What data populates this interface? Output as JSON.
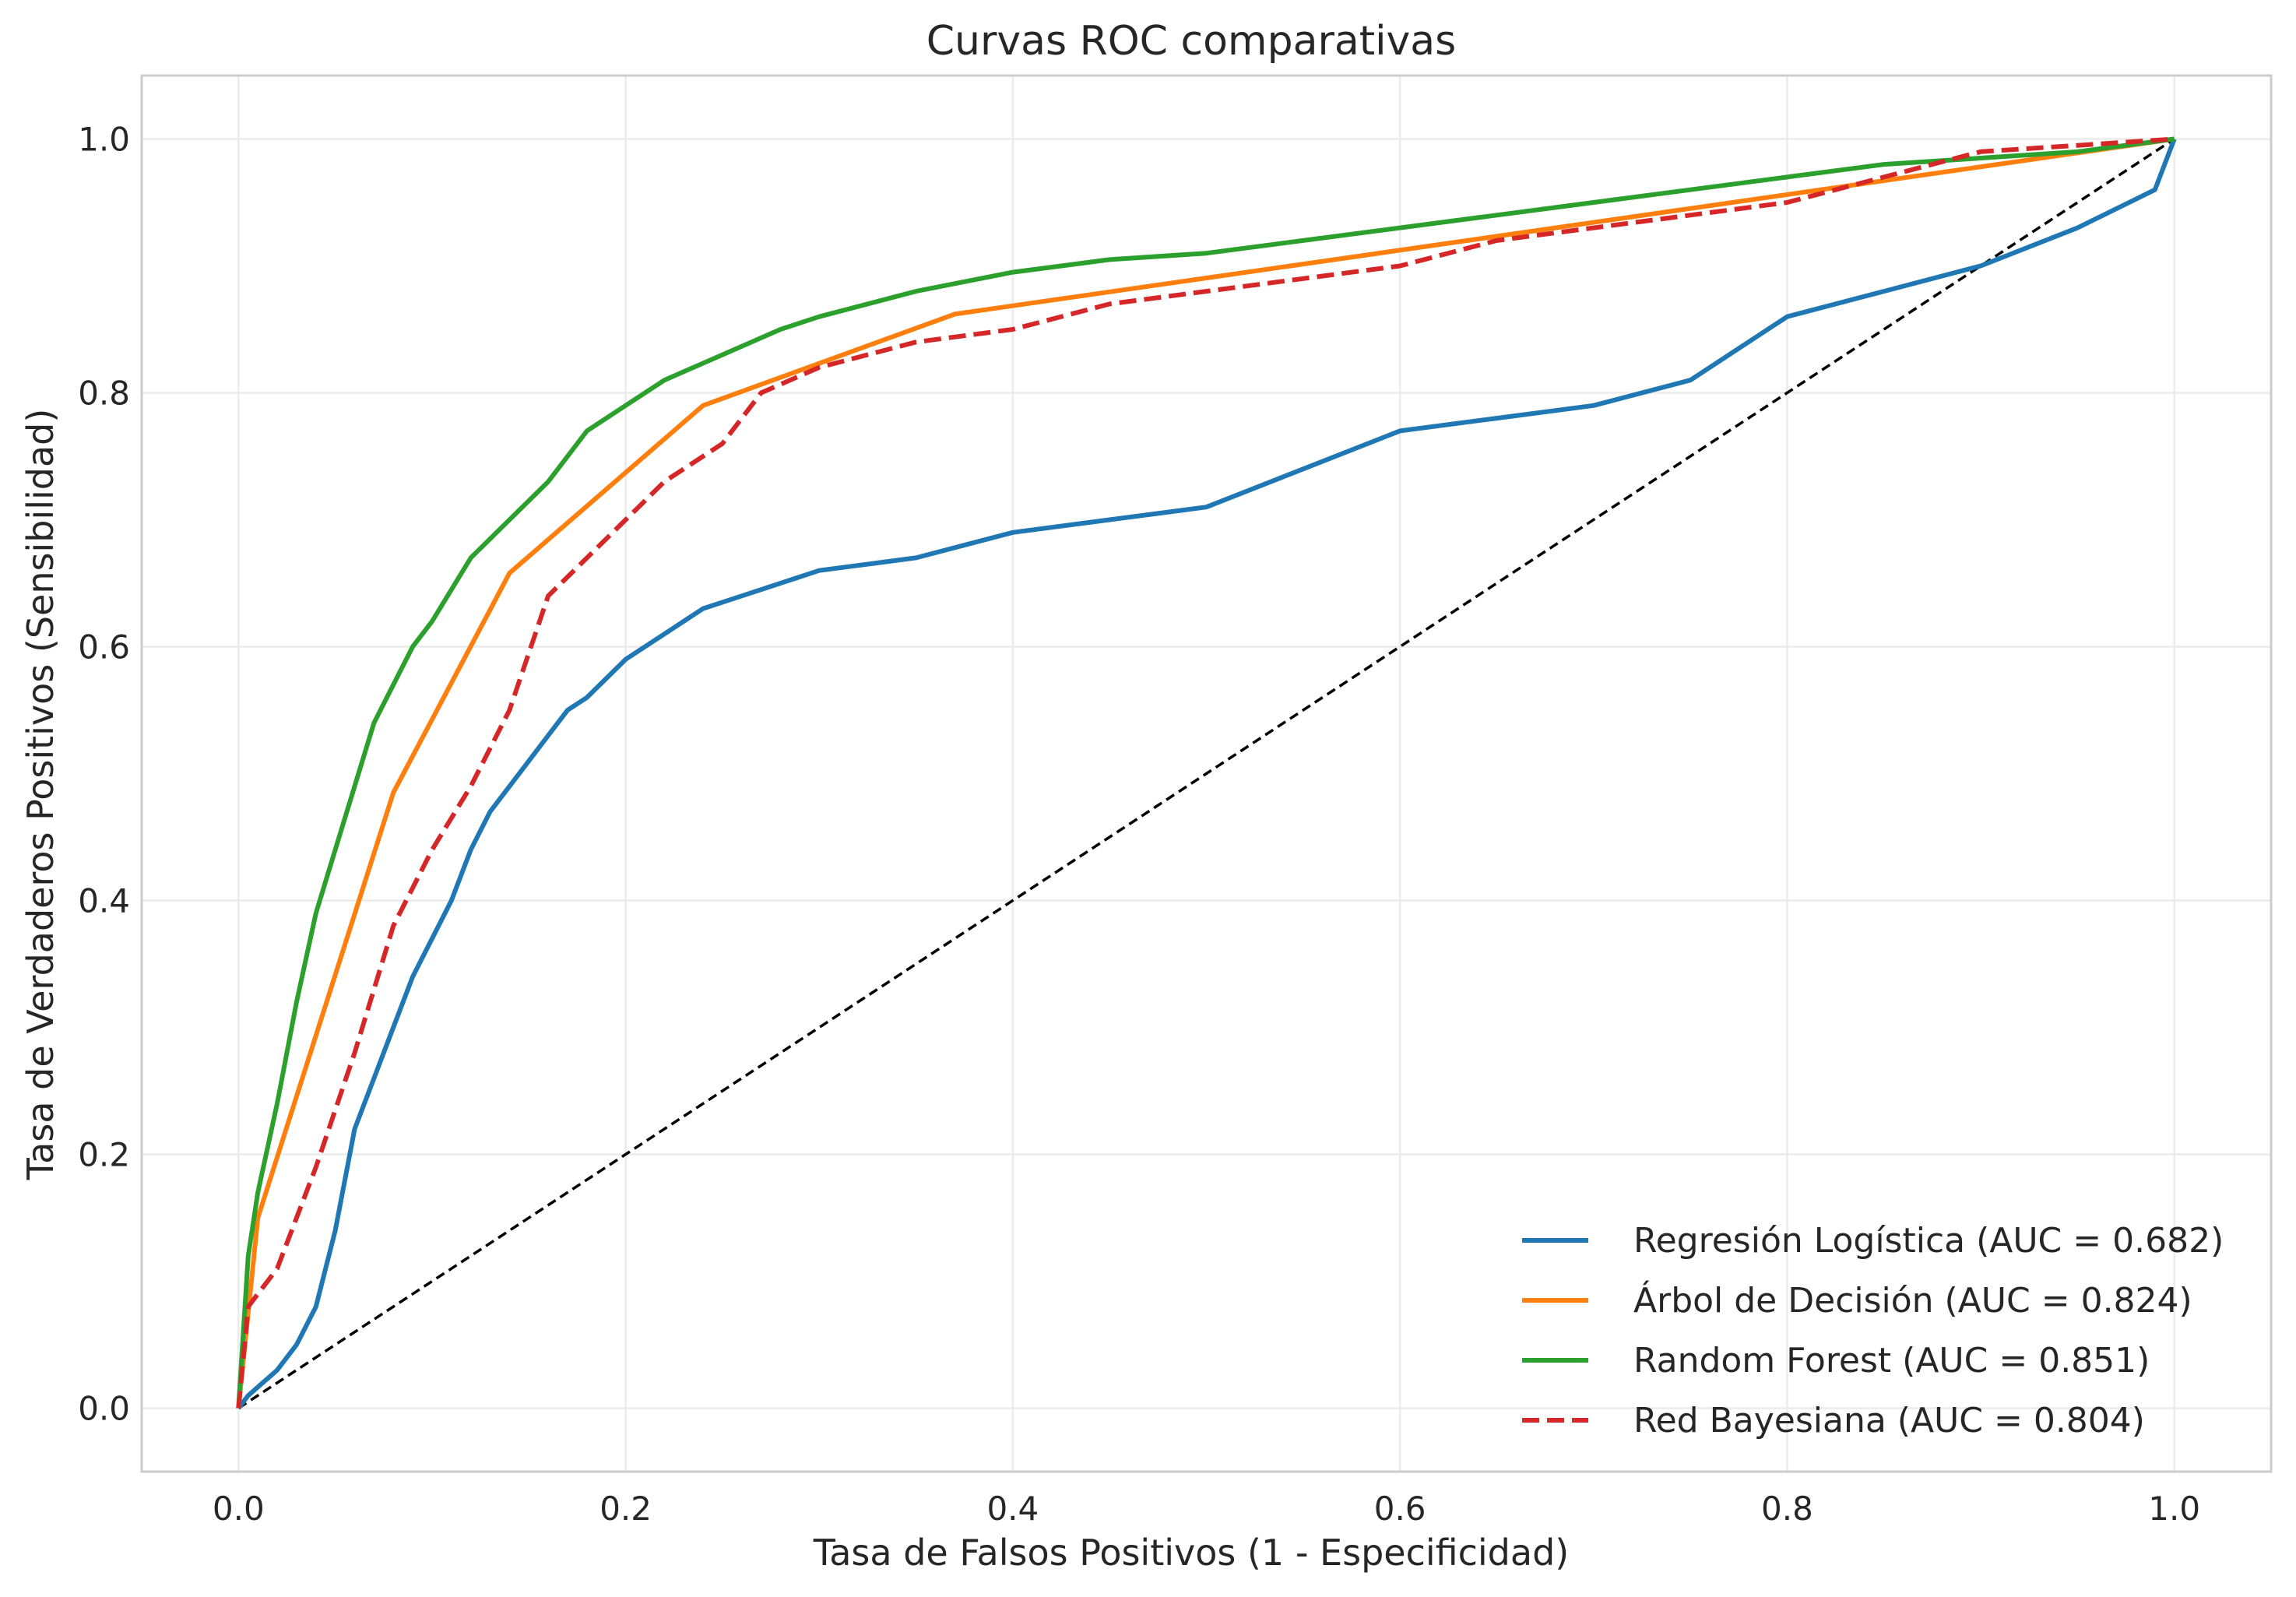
{
  "chart_data": {
    "type": "line",
    "title": "Curvas ROC comparativas",
    "xlabel": "Tasa de Falsos Positivos (1 - Especificidad)",
    "ylabel": "Tasa de Verdaderos Positivos (Sensibilidad)",
    "xlim": [
      -0.05,
      1.05
    ],
    "ylim": [
      -0.05,
      1.05
    ],
    "xticks": [
      0.0,
      0.2,
      0.4,
      0.6,
      0.8,
      1.0
    ],
    "yticks": [
      0.0,
      0.2,
      0.4,
      0.6,
      0.8,
      1.0
    ],
    "xtick_labels": [
      "0.0",
      "0.2",
      "0.4",
      "0.6",
      "0.8",
      "1.0"
    ],
    "ytick_labels": [
      "0.0",
      "0.2",
      "0.4",
      "0.6",
      "0.8",
      "1.0"
    ],
    "grid": true,
    "legend_position": "lower-right",
    "series": [
      {
        "name": "Regresión Logística (AUC = 0.682)",
        "color": "#1f77b4",
        "dash": "solid",
        "x": [
          0,
          0.005,
          0.02,
          0.03,
          0.04,
          0.05,
          0.06,
          0.07,
          0.08,
          0.09,
          0.1,
          0.11,
          0.12,
          0.13,
          0.14,
          0.15,
          0.16,
          0.17,
          0.18,
          0.2,
          0.22,
          0.24,
          0.26,
          0.28,
          0.3,
          0.35,
          0.4,
          0.45,
          0.5,
          0.55,
          0.6,
          0.65,
          0.7,
          0.75,
          0.8,
          0.85,
          0.9,
          0.95,
          0.99,
          1.0
        ],
        "y": [
          0,
          0.01,
          0.03,
          0.05,
          0.08,
          0.14,
          0.22,
          0.26,
          0.3,
          0.34,
          0.37,
          0.4,
          0.44,
          0.47,
          0.49,
          0.51,
          0.53,
          0.55,
          0.56,
          0.59,
          0.61,
          0.63,
          0.64,
          0.65,
          0.66,
          0.67,
          0.69,
          0.7,
          0.71,
          0.74,
          0.77,
          0.78,
          0.79,
          0.81,
          0.86,
          0.88,
          0.9,
          0.93,
          0.96,
          1.0
        ]
      },
      {
        "name": "Árbol de Decisión (AUC = 0.824)",
        "color": "#ff7f0e",
        "dash": "solid",
        "x": [
          0,
          0.01,
          0.08,
          0.14,
          0.24,
          0.37,
          1.0
        ],
        "y": [
          0,
          0.15,
          0.485,
          0.658,
          0.79,
          0.862,
          1.0
        ]
      },
      {
        "name": "Random Forest (AUC = 0.851)",
        "color": "#2ca02c",
        "dash": "solid",
        "x": [
          0,
          0.005,
          0.01,
          0.02,
          0.03,
          0.04,
          0.05,
          0.06,
          0.07,
          0.08,
          0.09,
          0.1,
          0.12,
          0.14,
          0.16,
          0.18,
          0.2,
          0.22,
          0.25,
          0.28,
          0.3,
          0.35,
          0.4,
          0.45,
          0.5,
          0.55,
          0.6,
          0.65,
          0.7,
          0.75,
          0.8,
          0.85,
          0.9,
          0.95,
          1.0
        ],
        "y": [
          0,
          0.12,
          0.17,
          0.24,
          0.32,
          0.39,
          0.44,
          0.49,
          0.54,
          0.57,
          0.6,
          0.62,
          0.67,
          0.7,
          0.73,
          0.77,
          0.79,
          0.81,
          0.83,
          0.85,
          0.86,
          0.88,
          0.895,
          0.905,
          0.91,
          0.92,
          0.93,
          0.94,
          0.95,
          0.96,
          0.97,
          0.98,
          0.985,
          0.99,
          1.0
        ]
      },
      {
        "name": "Red Bayesiana (AUC = 0.804)",
        "color": "#d62728",
        "dash": "dashed",
        "x": [
          0,
          0.005,
          0.02,
          0.04,
          0.06,
          0.08,
          0.1,
          0.12,
          0.14,
          0.16,
          0.18,
          0.2,
          0.22,
          0.25,
          0.27,
          0.3,
          0.35,
          0.4,
          0.45,
          0.5,
          0.55,
          0.6,
          0.65,
          0.7,
          0.75,
          0.8,
          0.85,
          0.9,
          0.95,
          1.0
        ],
        "y": [
          0,
          0.08,
          0.11,
          0.19,
          0.28,
          0.38,
          0.44,
          0.49,
          0.55,
          0.64,
          0.67,
          0.7,
          0.73,
          0.76,
          0.8,
          0.82,
          0.84,
          0.85,
          0.87,
          0.88,
          0.89,
          0.9,
          0.92,
          0.93,
          0.94,
          0.95,
          0.97,
          0.99,
          0.995,
          1.0
        ]
      }
    ],
    "reference_line": {
      "color": "#000000",
      "dash": "dashed",
      "x": [
        0,
        1
      ],
      "y": [
        0,
        1
      ]
    }
  }
}
